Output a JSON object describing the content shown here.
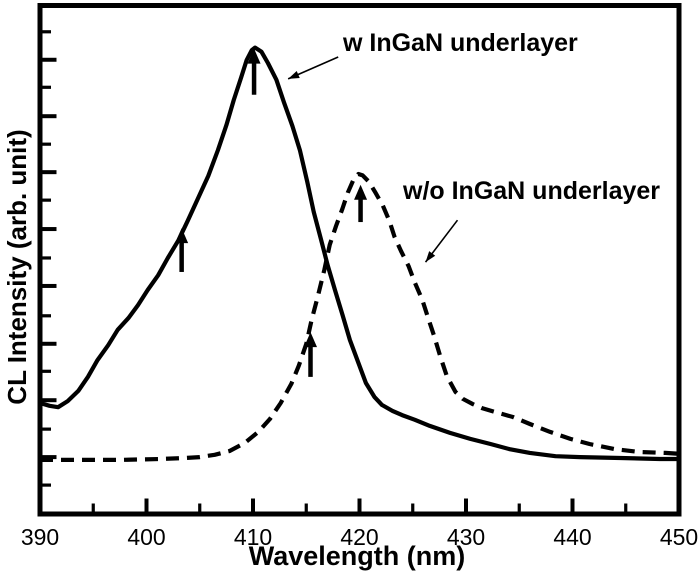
{
  "figure": {
    "background_color": "#ffffff",
    "ink_color": "#000000"
  },
  "annotations": {
    "with_underlayer": "w InGaN underlayer",
    "without_underlayer": "w/o InGaN underlayer"
  },
  "chart_data": {
    "type": "line",
    "title": "",
    "xlabel": "Wavelength (nm)",
    "ylabel": "CL Intensity (arb. unit)",
    "xlim": [
      390,
      450
    ],
    "ylim": [
      0,
      108.5
    ],
    "grid": false,
    "legend_position": "inline-annotations",
    "x_major_ticks": [
      390,
      400,
      410,
      420,
      430,
      440,
      450
    ],
    "x_minor_ticks": [
      395,
      405,
      415,
      425,
      435,
      445
    ],
    "y_major_ticks": [
      12.2,
      24.4,
      36.5,
      48.9,
      61.1,
      73.3,
      85.3,
      97.4
    ],
    "y_minor_ticks": [
      6.2,
      18.2,
      30.6,
      42.5,
      54.9,
      67.3,
      79.3,
      91.5,
      103.4
    ],
    "y_tick_labels_shown": false,
    "series": [
      {
        "name": "w InGaN underlayer",
        "line_style": "solid",
        "peak_wavelength_nm": 410,
        "x": [
          390,
          390.9,
          391.7,
          392.6,
          393.6,
          394.5,
          395.4,
          396.4,
          397.3,
          398.3,
          399.2,
          400.1,
          401.1,
          402.0,
          403.0,
          403.9,
          404.8,
          405.8,
          406.7,
          407.5,
          408.2,
          408.9,
          409.4,
          409.9,
          410.2,
          410.8,
          411.4,
          412.2,
          412.9,
          413.7,
          414.4,
          415.1,
          415.7,
          416.4,
          417.0,
          417.7,
          418.4,
          419.1,
          419.9,
          420.6,
          421.4,
          422.1,
          423.1,
          424.0,
          425.2,
          426.6,
          428.5,
          430.4,
          432.3,
          434.1,
          436.0,
          438.4,
          440.7,
          444.5,
          448.2,
          450
        ],
        "y": [
          23.8,
          23.2,
          22.9,
          24.2,
          26.4,
          29.4,
          33.0,
          36.2,
          39.5,
          42.0,
          44.8,
          48.0,
          51.2,
          54.9,
          58.7,
          63.0,
          67.5,
          72.5,
          78.0,
          83.4,
          88.8,
          93.7,
          97.3,
          99.5,
          100,
          99.1,
          96.7,
          93.1,
          88.3,
          83.2,
          78.0,
          71.2,
          64.8,
          58.7,
          53.4,
          48.0,
          42.7,
          37.3,
          32.4,
          28.1,
          25.1,
          23.4,
          22.1,
          21.2,
          20.2,
          18.9,
          17.4,
          16.1,
          15.0,
          13.9,
          13.1,
          12.4,
          12.2,
          12.0,
          11.8,
          11.8
        ]
      },
      {
        "name": "w/o InGaN underlayer",
        "line_style": "dashed",
        "peak_wavelength_nm": 420,
        "x": [
          390,
          393.8,
          397.5,
          401.3,
          403.6,
          405.0,
          406.4,
          407.8,
          409.2,
          410.5,
          411.6,
          412.6,
          413.6,
          414.3,
          415.0,
          415.5,
          416.1,
          416.7,
          417.2,
          417.8,
          418.4,
          418.9,
          419.4,
          419.9,
          420.3,
          420.9,
          421.5,
          422.2,
          422.8,
          423.3,
          423.9,
          424.6,
          425.2,
          425.9,
          426.4,
          427.0,
          427.6,
          428.2,
          429.0,
          429.7,
          430.6,
          431.5,
          432.7,
          434.4,
          436.0,
          437.9,
          439.8,
          441.6,
          444.0,
          446.3,
          448.7,
          450
        ],
        "y": [
          11.6,
          11.6,
          11.6,
          11.8,
          12.0,
          12.2,
          12.7,
          13.5,
          15.2,
          17.6,
          20.4,
          23.8,
          27.9,
          31.8,
          36.5,
          41.6,
          46.8,
          52.4,
          57.7,
          61.8,
          65.5,
          68.9,
          71.5,
          72.9,
          72.6,
          71.2,
          68.9,
          66.1,
          62.9,
          59.4,
          56.4,
          53.2,
          49.6,
          45.9,
          42.3,
          38.2,
          33.7,
          29.6,
          26.2,
          24.7,
          23.6,
          22.7,
          21.9,
          20.8,
          19.3,
          17.6,
          16.1,
          15.0,
          13.9,
          13.3,
          13.1,
          12.9
        ]
      }
    ],
    "peak_arrows": [
      {
        "x": 403.3,
        "y_base": 51.9,
        "y_tip": 61.3
      },
      {
        "x": 410.1,
        "y_base": 89.9,
        "y_tip": 99.8
      },
      {
        "x": 415.4,
        "y_base": 29.4,
        "y_tip": 39.0
      },
      {
        "x": 420.1,
        "y_base": 62.6,
        "y_tip": 70.6
      }
    ],
    "pointer_arrows": [
      {
        "label": "w InGaN underlayer",
        "from_x": 418.0,
        "from_y": 98.0,
        "to_x": 413.3,
        "to_y": 93.3
      },
      {
        "label": "w/o InGaN underlayer",
        "from_x": 429.2,
        "from_y": 63.0,
        "to_x": 426.2,
        "to_y": 54.0
      }
    ]
  }
}
